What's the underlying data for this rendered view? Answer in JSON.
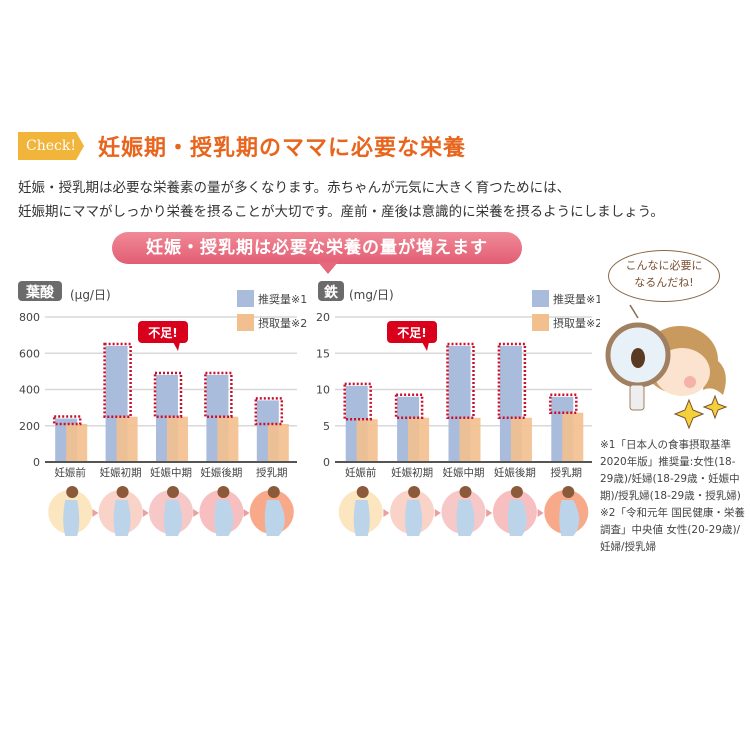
{
  "header": {
    "badge": "Check!",
    "title": "妊娠期・授乳期のママに必要な栄養"
  },
  "intro": [
    "妊娠・授乳期は必要な栄養素の量が多くなります。赤ちゃんが元気に大きく育つためには、",
    "妊娠期にママがしっかり栄養を摂ることが大切です。産前・産後は意識的に栄養を摂るようにしましょう。"
  ],
  "banner": "妊娠・授乳期は必要な栄養の量が増えます",
  "speech": [
    "こんなに必要に",
    "なるんだね!"
  ],
  "shortage_label": "不足!",
  "colors": {
    "recommended": "#a9bcdc",
    "intake": "#f2c08f",
    "shortage_outline": "#c8102e",
    "title": "#e8651e",
    "banner": "#e5687c"
  },
  "chart_data": [
    {
      "type": "bar",
      "title": "葉酸",
      "unit": "(μg/日)",
      "categories": [
        "妊娠前",
        "妊娠初期",
        "妊娠中期",
        "妊娠後期",
        "授乳期"
      ],
      "ylim": [
        0,
        800
      ],
      "yticks": [
        0,
        200,
        400,
        600,
        800
      ],
      "grid": true,
      "legend": "top-right",
      "series": [
        {
          "name": "推奨量※1",
          "values": [
            240,
            640,
            480,
            480,
            340
          ]
        },
        {
          "name": "摂取量※2",
          "values": [
            210,
            250,
            250,
            250,
            210
          ]
        }
      ]
    },
    {
      "type": "bar",
      "title": "鉄",
      "unit": "(mg/日)",
      "categories": [
        "妊娠前",
        "妊娠初期",
        "妊娠中期",
        "妊娠後期",
        "授乳期"
      ],
      "ylim": [
        0,
        20
      ],
      "yticks": [
        0,
        5,
        10,
        15,
        20
      ],
      "grid": true,
      "legend": "top-right",
      "series": [
        {
          "name": "推奨量※1",
          "values": [
            10.5,
            9.0,
            16.0,
            16.0,
            9.0
          ]
        },
        {
          "name": "摂取量※2",
          "values": [
            5.9,
            6.1,
            6.1,
            6.1,
            6.8
          ]
        }
      ]
    }
  ],
  "footnotes": [
    "※1「日本人の食事摂取基準2020年版」推奨量:女性(18-29歳)/妊婦(18-29歳・妊娠中期)/授乳婦(18-29歳・授乳婦)",
    "※2「令和元年 国民健康・栄養調査」中央値 女性(20-29歳)/妊婦/授乳婦"
  ]
}
